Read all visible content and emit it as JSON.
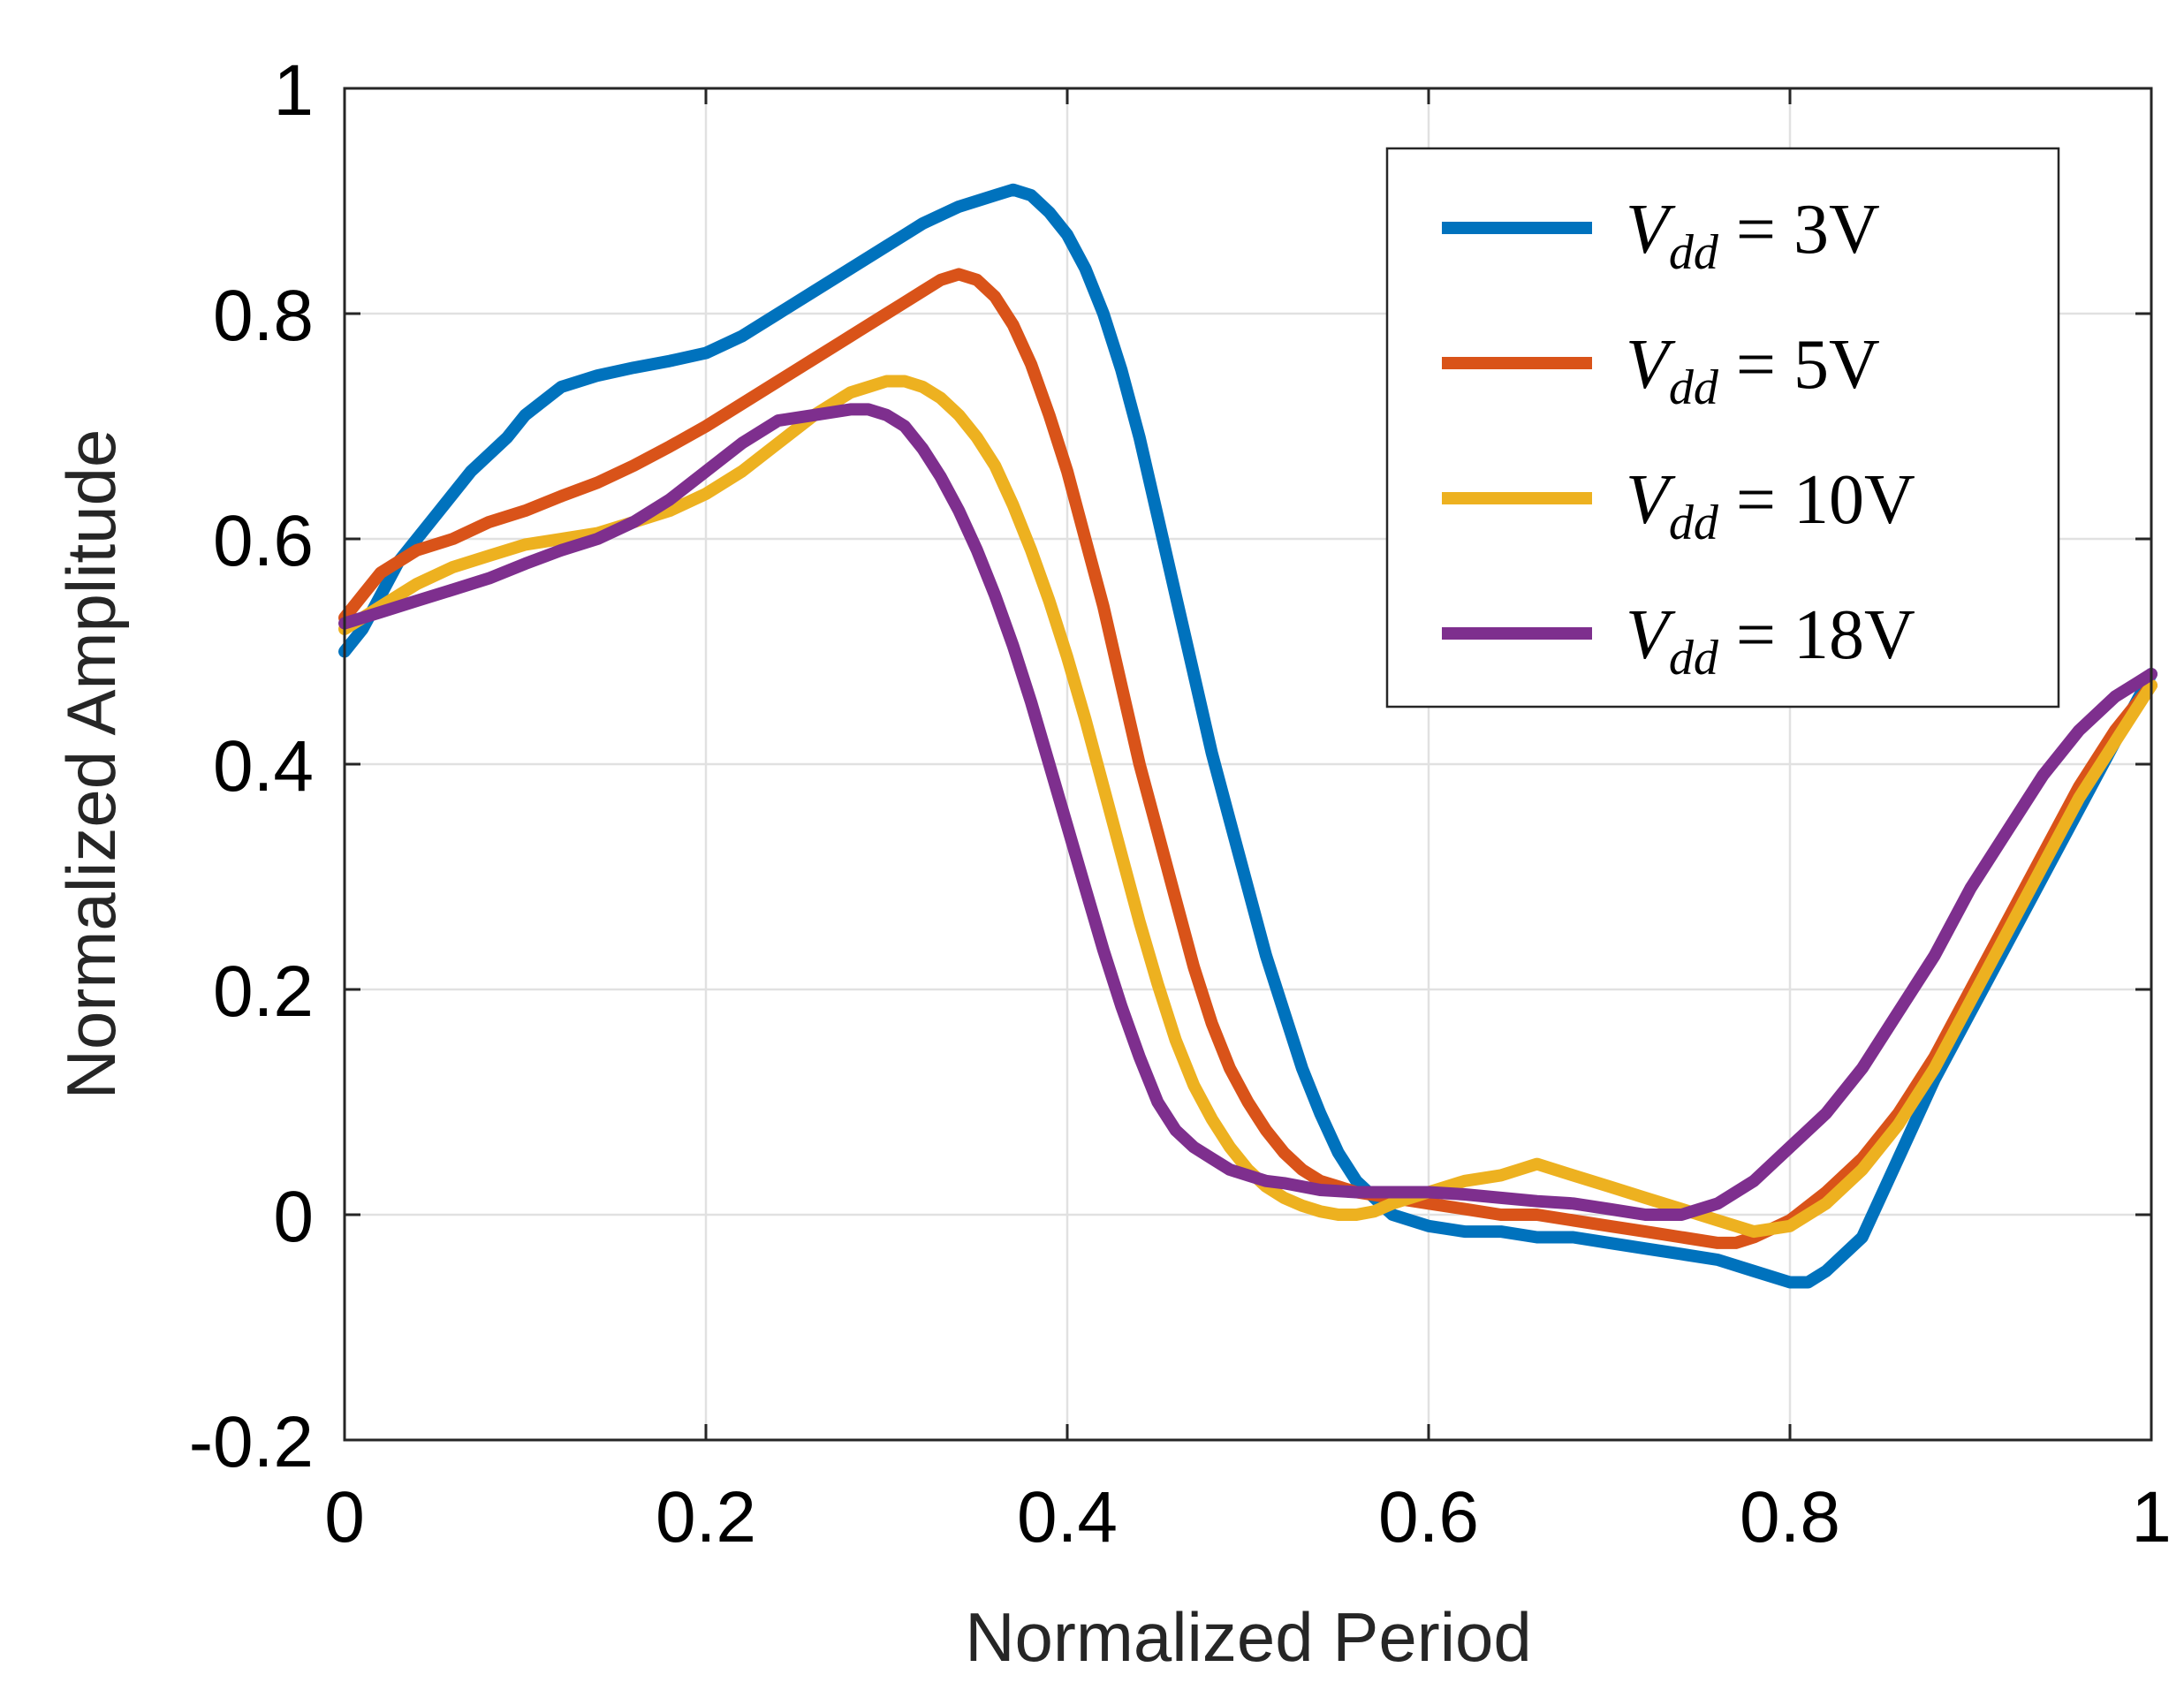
{
  "chart_data": {
    "type": "line",
    "title": "",
    "xlabel": "Normalized Period",
    "ylabel": "Normalized Amplitude",
    "xlim": [
      0,
      1
    ],
    "ylim": [
      -0.2,
      1
    ],
    "xticks": [
      0,
      0.2,
      0.4,
      0.6,
      0.8,
      1
    ],
    "yticks": [
      -0.2,
      0,
      0.2,
      0.4,
      0.6,
      0.8,
      1
    ],
    "xtick_labels": [
      "0",
      "0.2",
      "0.4",
      "0.6",
      "0.8",
      "1"
    ],
    "ytick_labels": [
      "-0.2",
      "0",
      "0.2",
      "0.4",
      "0.6",
      "0.8",
      "1"
    ],
    "grid": true,
    "legend_position": "top-right",
    "series": [
      {
        "name": "Vdd = 3V",
        "legend": {
          "var": "V",
          "sub": "dd",
          "rest": " = 3V"
        },
        "color": "#0072BD",
        "x": [
          0,
          0.01,
          0.02,
          0.03,
          0.05,
          0.07,
          0.09,
          0.1,
          0.12,
          0.14,
          0.16,
          0.18,
          0.2,
          0.22,
          0.24,
          0.26,
          0.28,
          0.3,
          0.32,
          0.34,
          0.36,
          0.37,
          0.38,
          0.39,
          0.4,
          0.41,
          0.42,
          0.43,
          0.44,
          0.45,
          0.46,
          0.47,
          0.48,
          0.49,
          0.5,
          0.51,
          0.52,
          0.53,
          0.54,
          0.55,
          0.56,
          0.57,
          0.58,
          0.6,
          0.62,
          0.64,
          0.66,
          0.68,
          0.7,
          0.72,
          0.74,
          0.76,
          0.78,
          0.8,
          0.81,
          0.82,
          0.84,
          0.86,
          0.88,
          0.9,
          0.92,
          0.94,
          0.96,
          0.98,
          1.0
        ],
        "values": [
          0.5,
          0.52,
          0.55,
          0.58,
          0.62,
          0.66,
          0.69,
          0.71,
          0.735,
          0.745,
          0.752,
          0.758,
          0.765,
          0.78,
          0.8,
          0.82,
          0.84,
          0.86,
          0.88,
          0.895,
          0.905,
          0.91,
          0.905,
          0.89,
          0.87,
          0.84,
          0.8,
          0.75,
          0.69,
          0.62,
          0.55,
          0.48,
          0.41,
          0.35,
          0.29,
          0.23,
          0.18,
          0.13,
          0.09,
          0.055,
          0.03,
          0.015,
          0.0,
          -0.01,
          -0.015,
          -0.015,
          -0.02,
          -0.02,
          -0.025,
          -0.03,
          -0.035,
          -0.04,
          -0.05,
          -0.06,
          -0.06,
          -0.05,
          -0.02,
          0.05,
          0.12,
          0.18,
          0.24,
          0.3,
          0.36,
          0.42,
          0.48
        ]
      },
      {
        "name": "Vdd = 5V",
        "legend": {
          "var": "V",
          "sub": "dd",
          "rest": " = 5V"
        },
        "color": "#D95319",
        "x": [
          0,
          0.01,
          0.02,
          0.04,
          0.06,
          0.08,
          0.1,
          0.12,
          0.14,
          0.16,
          0.18,
          0.2,
          0.22,
          0.24,
          0.26,
          0.28,
          0.3,
          0.32,
          0.33,
          0.34,
          0.35,
          0.36,
          0.37,
          0.38,
          0.39,
          0.4,
          0.41,
          0.42,
          0.43,
          0.44,
          0.45,
          0.46,
          0.47,
          0.48,
          0.49,
          0.5,
          0.51,
          0.52,
          0.53,
          0.54,
          0.55,
          0.56,
          0.58,
          0.6,
          0.62,
          0.64,
          0.66,
          0.68,
          0.7,
          0.72,
          0.74,
          0.76,
          0.77,
          0.78,
          0.8,
          0.82,
          0.84,
          0.86,
          0.88,
          0.9,
          0.92,
          0.94,
          0.96,
          0.98,
          1.0
        ],
        "values": [
          0.53,
          0.55,
          0.57,
          0.59,
          0.6,
          0.615,
          0.625,
          0.638,
          0.65,
          0.665,
          0.682,
          0.7,
          0.72,
          0.74,
          0.76,
          0.78,
          0.8,
          0.82,
          0.83,
          0.835,
          0.83,
          0.815,
          0.79,
          0.755,
          0.71,
          0.66,
          0.6,
          0.54,
          0.47,
          0.4,
          0.34,
          0.28,
          0.22,
          0.17,
          0.13,
          0.1,
          0.075,
          0.055,
          0.04,
          0.03,
          0.025,
          0.02,
          0.015,
          0.01,
          0.005,
          0.0,
          0.0,
          -0.005,
          -0.01,
          -0.015,
          -0.02,
          -0.025,
          -0.025,
          -0.02,
          -0.005,
          0.02,
          0.05,
          0.09,
          0.14,
          0.2,
          0.26,
          0.32,
          0.38,
          0.43,
          0.47
        ]
      },
      {
        "name": "Vdd = 10V",
        "legend": {
          "var": "V",
          "sub": "dd",
          "rest": " = 10V"
        },
        "color": "#EDB120",
        "x": [
          0,
          0.02,
          0.04,
          0.06,
          0.08,
          0.1,
          0.12,
          0.14,
          0.16,
          0.18,
          0.2,
          0.22,
          0.24,
          0.26,
          0.28,
          0.29,
          0.3,
          0.31,
          0.32,
          0.33,
          0.34,
          0.35,
          0.36,
          0.37,
          0.38,
          0.39,
          0.4,
          0.41,
          0.42,
          0.43,
          0.44,
          0.45,
          0.46,
          0.47,
          0.48,
          0.49,
          0.5,
          0.51,
          0.52,
          0.53,
          0.54,
          0.55,
          0.56,
          0.57,
          0.58,
          0.6,
          0.62,
          0.64,
          0.65,
          0.66,
          0.68,
          0.7,
          0.72,
          0.74,
          0.76,
          0.78,
          0.8,
          0.82,
          0.84,
          0.86,
          0.88,
          0.9,
          0.92,
          0.94,
          0.96,
          0.98,
          1.0
        ],
        "values": [
          0.52,
          0.54,
          0.56,
          0.575,
          0.585,
          0.595,
          0.6,
          0.605,
          0.615,
          0.625,
          0.64,
          0.66,
          0.685,
          0.71,
          0.73,
          0.735,
          0.74,
          0.74,
          0.735,
          0.725,
          0.71,
          0.69,
          0.665,
          0.63,
          0.59,
          0.545,
          0.495,
          0.44,
          0.38,
          0.32,
          0.26,
          0.205,
          0.155,
          0.115,
          0.085,
          0.06,
          0.04,
          0.025,
          0.015,
          0.008,
          0.003,
          0.0,
          0.0,
          0.003,
          0.01,
          0.02,
          0.03,
          0.035,
          0.04,
          0.045,
          0.035,
          0.025,
          0.015,
          0.005,
          -0.005,
          -0.015,
          -0.01,
          0.01,
          0.04,
          0.08,
          0.13,
          0.19,
          0.25,
          0.31,
          0.37,
          0.42,
          0.47
        ]
      },
      {
        "name": "Vdd = 18V",
        "legend": {
          "var": "V",
          "sub": "dd",
          "rest": " = 18V"
        },
        "color": "#7E2F8E",
        "x": [
          0,
          0.02,
          0.04,
          0.06,
          0.08,
          0.1,
          0.12,
          0.14,
          0.16,
          0.18,
          0.2,
          0.22,
          0.24,
          0.26,
          0.28,
          0.29,
          0.3,
          0.31,
          0.32,
          0.33,
          0.34,
          0.35,
          0.36,
          0.37,
          0.38,
          0.39,
          0.4,
          0.41,
          0.42,
          0.43,
          0.44,
          0.45,
          0.46,
          0.47,
          0.48,
          0.49,
          0.5,
          0.51,
          0.52,
          0.53,
          0.54,
          0.56,
          0.58,
          0.6,
          0.62,
          0.64,
          0.66,
          0.68,
          0.7,
          0.72,
          0.74,
          0.76,
          0.78,
          0.8,
          0.82,
          0.84,
          0.86,
          0.88,
          0.9,
          0.92,
          0.94,
          0.96,
          0.98,
          1.0
        ],
        "values": [
          0.525,
          0.535,
          0.545,
          0.555,
          0.565,
          0.578,
          0.59,
          0.6,
          0.615,
          0.635,
          0.66,
          0.685,
          0.705,
          0.71,
          0.715,
          0.715,
          0.71,
          0.7,
          0.68,
          0.655,
          0.625,
          0.59,
          0.55,
          0.505,
          0.455,
          0.4,
          0.345,
          0.29,
          0.235,
          0.185,
          0.14,
          0.1,
          0.075,
          0.06,
          0.05,
          0.04,
          0.035,
          0.03,
          0.028,
          0.025,
          0.022,
          0.02,
          0.02,
          0.02,
          0.018,
          0.015,
          0.012,
          0.01,
          0.005,
          0.0,
          0.0,
          0.01,
          0.03,
          0.06,
          0.09,
          0.13,
          0.18,
          0.23,
          0.29,
          0.34,
          0.39,
          0.43,
          0.46,
          0.48
        ]
      }
    ]
  }
}
